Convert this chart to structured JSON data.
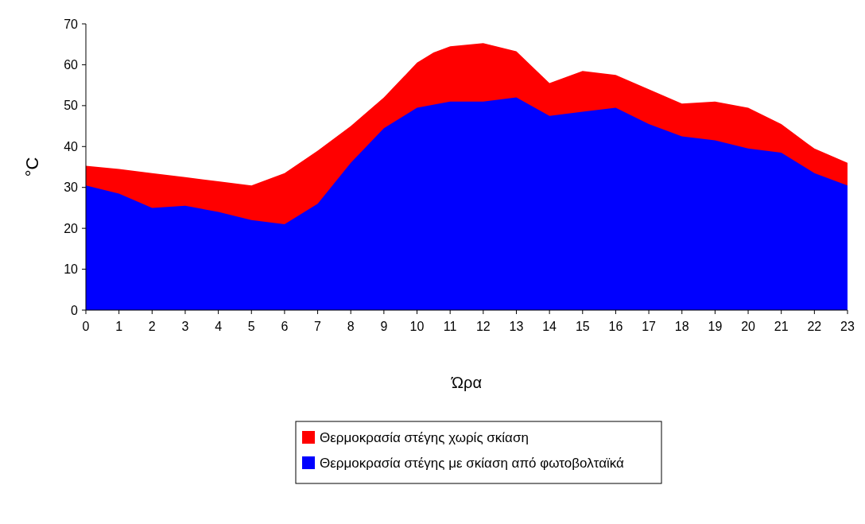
{
  "chart_data": {
    "type": "area",
    "xlabel": "Ώρα",
    "ylabel": "°C",
    "x": [
      0,
      1,
      2,
      3,
      4,
      5,
      6,
      7,
      8,
      9,
      10,
      11,
      12,
      13,
      14,
      15,
      16,
      17,
      18,
      19,
      20,
      21,
      22,
      23
    ],
    "series": [
      {
        "name": "Θερμοκρασία στέγης χωρίς σκίαση",
        "color": "#ff0000",
        "x": [
          0,
          1,
          2,
          3,
          4,
          5,
          6,
          7,
          8,
          9,
          10,
          10.5,
          11,
          12,
          13,
          14,
          15,
          16,
          17,
          18,
          19,
          20,
          21,
          22,
          23
        ],
        "values": [
          35.3,
          34.5,
          33.5,
          32.5,
          31.5,
          30.5,
          33.5,
          39,
          45,
          52,
          60.5,
          63,
          64.5,
          65.3,
          63.3,
          55.5,
          58.5,
          57.5,
          54,
          50.5,
          51,
          49.5,
          45.5,
          39.5,
          36
        ]
      },
      {
        "name": "Θερμοκρασία στέγης με σκίαση από φωτοβολταϊκά",
        "color": "#0000ff",
        "values": [
          30.5,
          28.5,
          25,
          25.5,
          24,
          22,
          21,
          26,
          36,
          44.5,
          49.5,
          51,
          51,
          52,
          47.5,
          48.5,
          49.5,
          45.5,
          42.5,
          41.5,
          39.5,
          38.5,
          33.5,
          30.5
        ]
      }
    ],
    "xlim": [
      0,
      23
    ],
    "xticks": [
      0,
      1,
      2,
      3,
      4,
      5,
      6,
      7,
      8,
      9,
      10,
      11,
      12,
      13,
      14,
      15,
      16,
      17,
      18,
      19,
      20,
      21,
      22,
      23
    ],
    "ylim": [
      0,
      70
    ],
    "yticks": [
      0,
      10,
      20,
      30,
      40,
      50,
      60,
      70
    ],
    "grid": false,
    "legend": "bottom"
  }
}
